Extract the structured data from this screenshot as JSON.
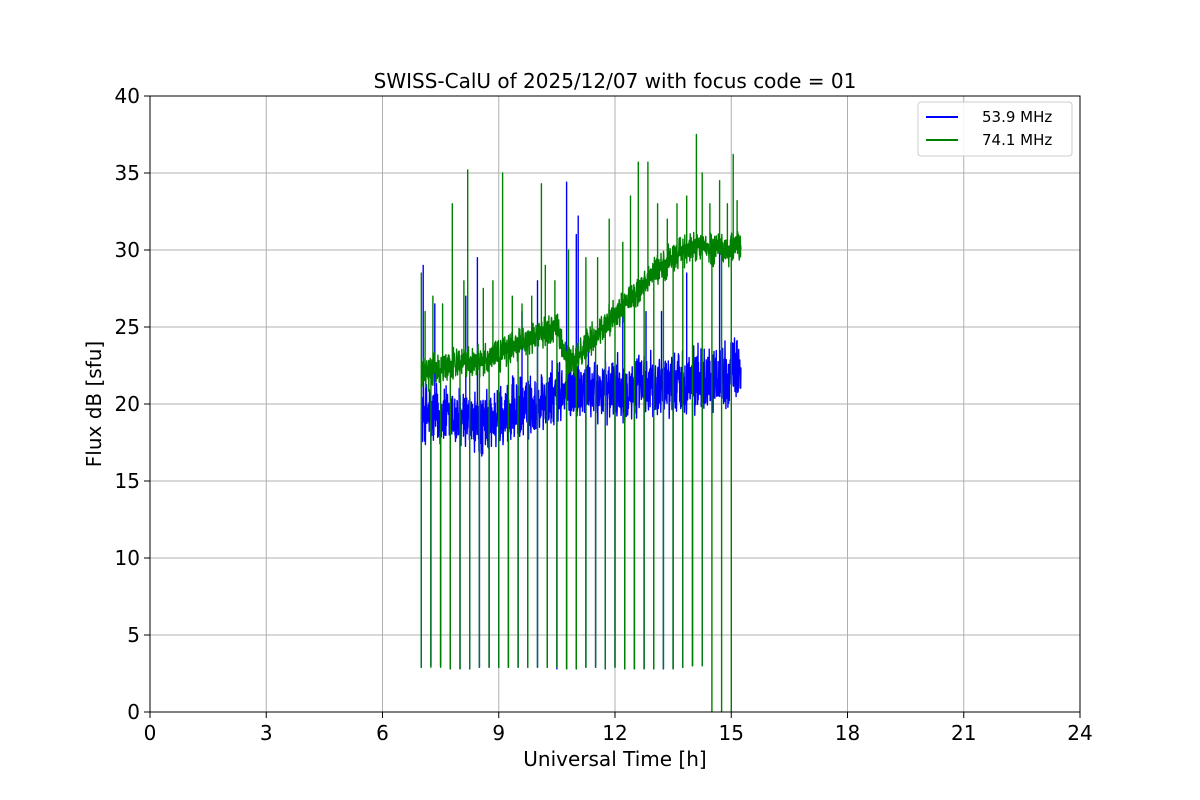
{
  "chart_data": {
    "type": "line",
    "title": "SWISS-CalU of 2025/12/07 with focus code = 01",
    "xlabel": "Universal Time [h]",
    "ylabel": "Flux dB [sfu]",
    "xlim": [
      0,
      24
    ],
    "ylim": [
      0,
      40
    ],
    "xticks": [
      0,
      3,
      6,
      9,
      12,
      15,
      18,
      21,
      24
    ],
    "yticks": [
      0,
      5,
      10,
      15,
      20,
      25,
      30,
      35,
      40
    ],
    "grid": true,
    "legend_position": "top-right",
    "series": [
      {
        "name": "53.9 MHz",
        "color": "#0000ff",
        "baseline": [
          [
            7.0,
            19.5
          ],
          [
            8.0,
            19.0
          ],
          [
            8.5,
            18.5
          ],
          [
            9.0,
            19.2
          ],
          [
            9.5,
            19.5
          ],
          [
            10.0,
            20.0
          ],
          [
            10.5,
            20.5
          ],
          [
            11.0,
            21.0
          ],
          [
            11.5,
            21.0
          ],
          [
            12.0,
            21.0
          ],
          [
            12.5,
            21.0
          ],
          [
            13.0,
            21.2
          ],
          [
            13.5,
            21.5
          ],
          [
            14.0,
            21.6
          ],
          [
            14.5,
            21.8
          ],
          [
            15.0,
            22.0
          ],
          [
            15.25,
            22.5
          ]
        ],
        "noise_amplitude": 2.5,
        "spikes_low": [
          [
            7.0,
            2.9
          ],
          [
            7.25,
            3.0
          ],
          [
            7.5,
            3.0
          ],
          [
            7.75,
            2.8
          ],
          [
            8.0,
            2.8
          ],
          [
            8.25,
            2.8
          ],
          [
            8.5,
            2.9
          ],
          [
            8.75,
            2.9
          ],
          [
            9.0,
            2.9
          ],
          [
            9.25,
            2.9
          ],
          [
            9.5,
            2.9
          ],
          [
            9.75,
            2.9
          ],
          [
            10.0,
            2.9
          ],
          [
            10.25,
            2.9
          ],
          [
            10.5,
            2.8
          ],
          [
            10.75,
            2.8
          ],
          [
            11.0,
            2.8
          ],
          [
            11.25,
            2.9
          ],
          [
            11.5,
            2.9
          ],
          [
            11.75,
            2.8
          ],
          [
            12.0,
            2.9
          ],
          [
            12.25,
            2.8
          ],
          [
            12.5,
            2.8
          ],
          [
            12.75,
            2.8
          ],
          [
            13.0,
            2.8
          ],
          [
            13.25,
            2.8
          ],
          [
            13.5,
            2.8
          ],
          [
            13.75,
            2.9
          ],
          [
            14.0,
            3.0
          ],
          [
            14.25,
            3.0
          ]
        ],
        "spikes_high": [
          [
            7.05,
            29.0
          ],
          [
            7.35,
            26.5
          ],
          [
            8.15,
            27.0
          ],
          [
            8.45,
            29.5
          ],
          [
            9.6,
            26.0
          ],
          [
            10.0,
            28.0
          ],
          [
            10.75,
            34.4
          ],
          [
            11.0,
            31.0
          ],
          [
            11.05,
            32.2
          ],
          [
            12.2,
            27.0
          ],
          [
            12.8,
            26.0
          ],
          [
            13.2,
            26.0
          ],
          [
            13.85,
            28.5
          ],
          [
            14.7,
            30.5
          ]
        ]
      },
      {
        "name": "74.1 MHz",
        "color": "#008000",
        "baseline": [
          [
            7.0,
            21.8
          ],
          [
            7.5,
            22.3
          ],
          [
            8.0,
            22.8
          ],
          [
            8.5,
            22.8
          ],
          [
            9.0,
            23.2
          ],
          [
            9.5,
            24.0
          ],
          [
            10.0,
            24.5
          ],
          [
            10.5,
            25.0
          ],
          [
            10.75,
            22.8
          ],
          [
            11.0,
            23.0
          ],
          [
            11.5,
            24.5
          ],
          [
            12.0,
            25.8
          ],
          [
            12.5,
            27.0
          ],
          [
            13.0,
            28.5
          ],
          [
            13.5,
            29.5
          ],
          [
            14.0,
            30.2
          ],
          [
            14.5,
            30.0
          ],
          [
            15.0,
            30.0
          ],
          [
            15.25,
            30.4
          ]
        ],
        "noise_amplitude": 1.2,
        "spikes_low": [
          [
            7.0,
            2.9
          ],
          [
            7.25,
            2.9
          ],
          [
            7.5,
            2.9
          ],
          [
            7.75,
            2.8
          ],
          [
            8.0,
            2.8
          ],
          [
            8.25,
            2.8
          ],
          [
            8.5,
            2.9
          ],
          [
            8.75,
            2.9
          ],
          [
            9.0,
            2.9
          ],
          [
            9.25,
            2.9
          ],
          [
            9.5,
            2.9
          ],
          [
            9.75,
            2.9
          ],
          [
            10.0,
            2.9
          ],
          [
            10.25,
            2.9
          ],
          [
            10.5,
            2.9
          ],
          [
            10.75,
            2.8
          ],
          [
            11.0,
            2.8
          ],
          [
            11.25,
            2.9
          ],
          [
            11.5,
            2.9
          ],
          [
            11.75,
            2.8
          ],
          [
            12.0,
            2.9
          ],
          [
            12.25,
            2.8
          ],
          [
            12.5,
            2.8
          ],
          [
            12.75,
            2.8
          ],
          [
            13.0,
            2.8
          ],
          [
            13.25,
            2.8
          ],
          [
            13.5,
            2.8
          ],
          [
            13.75,
            2.9
          ],
          [
            14.0,
            3.0
          ],
          [
            14.25,
            3.0
          ],
          [
            14.5,
            0.0
          ],
          [
            14.75,
            0.0
          ],
          [
            15.0,
            0.0
          ]
        ],
        "spikes_high": [
          [
            7.0,
            28.5
          ],
          [
            7.1,
            26.0
          ],
          [
            7.3,
            27.0
          ],
          [
            7.55,
            26.5
          ],
          [
            7.8,
            33.0
          ],
          [
            8.1,
            28.0
          ],
          [
            8.2,
            35.2
          ],
          [
            8.6,
            27.5
          ],
          [
            8.85,
            28.0
          ],
          [
            9.1,
            35.0
          ],
          [
            9.35,
            27.0
          ],
          [
            9.6,
            26.5
          ],
          [
            9.85,
            27.0
          ],
          [
            10.1,
            34.3
          ],
          [
            10.2,
            29.0
          ],
          [
            10.45,
            28.0
          ],
          [
            10.8,
            30.0
          ],
          [
            11.25,
            29.5
          ],
          [
            11.55,
            29.5
          ],
          [
            11.85,
            32.0
          ],
          [
            12.2,
            30.5
          ],
          [
            12.4,
            33.5
          ],
          [
            12.6,
            35.7
          ],
          [
            12.85,
            35.7
          ],
          [
            13.1,
            33.0
          ],
          [
            13.35,
            32.0
          ],
          [
            13.6,
            33.0
          ],
          [
            13.85,
            33.5
          ],
          [
            14.1,
            37.5
          ],
          [
            14.25,
            35.0
          ],
          [
            14.45,
            33.0
          ],
          [
            14.7,
            34.5
          ],
          [
            14.9,
            33.0
          ],
          [
            15.05,
            36.2
          ],
          [
            15.15,
            33.2
          ]
        ]
      }
    ]
  }
}
